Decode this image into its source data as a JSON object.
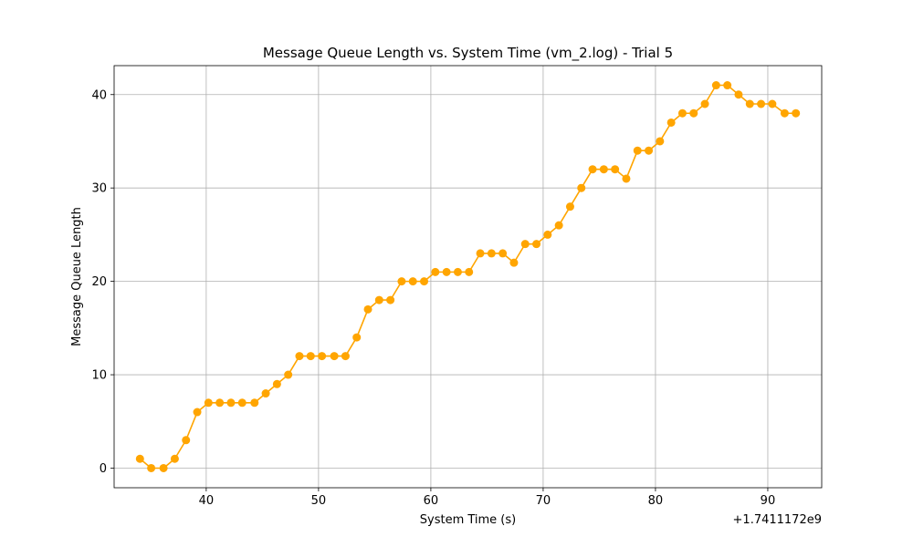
{
  "chart_data": {
    "type": "line",
    "title": "Message Queue Length vs. System Time (vm_2.log) - Trial 5",
    "xlabel": "System Time (s)",
    "ylabel": "Message Queue Length",
    "x_offset_label": "+1.7411172e9",
    "x_ticks": [
      40,
      50,
      60,
      70,
      80,
      90
    ],
    "y_ticks": [
      0,
      10,
      20,
      30,
      40
    ],
    "xlim": [
      31.8,
      94.8
    ],
    "ylim": [
      -2.1,
      43.1
    ],
    "grid": true,
    "colors": {
      "line": "#ffa500",
      "marker": "#ffa500"
    },
    "series": [
      {
        "x": [
          34.1,
          35.1,
          36.2,
          37.2,
          38.2,
          39.2,
          40.2,
          41.2,
          42.2,
          43.2,
          44.3,
          45.3,
          46.3,
          47.3,
          48.3,
          49.3,
          50.3,
          51.4,
          52.4,
          53.4,
          54.4,
          55.4,
          56.4,
          57.4,
          58.4,
          59.4,
          60.4,
          61.4,
          62.4,
          63.4,
          64.4,
          65.4,
          66.4,
          67.4,
          68.4,
          69.4,
          70.4,
          71.4,
          72.4,
          73.4,
          74.4,
          75.4,
          76.4,
          77.4,
          78.4,
          79.4,
          80.4,
          81.4,
          82.4,
          83.4,
          84.4,
          85.4,
          86.4,
          87.4,
          88.4,
          89.4,
          90.4,
          91.5,
          92.5
        ],
        "y": [
          1,
          0,
          0,
          1,
          3,
          6,
          7,
          7,
          7,
          7,
          7,
          8,
          9,
          10,
          12,
          12,
          12,
          12,
          12,
          14,
          17,
          18,
          18,
          20,
          20,
          20,
          21,
          21,
          21,
          21,
          23,
          23,
          23,
          22,
          24,
          24,
          25,
          26,
          28,
          30,
          32,
          32,
          32,
          31,
          34,
          34,
          35,
          37,
          38,
          38,
          39,
          41,
          41,
          40,
          39,
          39,
          39,
          38,
          38
        ]
      }
    ]
  }
}
